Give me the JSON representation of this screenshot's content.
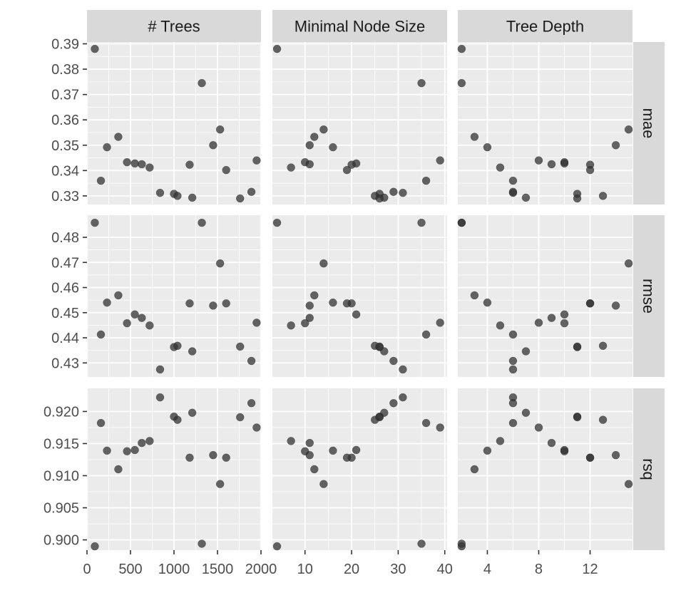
{
  "chart_data": {
    "type": "scatter",
    "facet_columns": [
      "# Trees",
      "Minimal Node Size",
      "Tree Depth"
    ],
    "facet_rows": [
      "mae",
      "rmse",
      "rsq"
    ],
    "point_color": "#333333",
    "point_opacity": 0.75,
    "panel_background": "#ebebeb",
    "strip_background": "#d9d9d9",
    "grid": true,
    "x_axes": [
      {
        "lim": [
          0,
          2000
        ],
        "ticks": [
          0,
          500,
          1000,
          1500,
          2000
        ],
        "tick_labels": [
          "0",
          "500",
          "1000",
          "1500",
          "2000"
        ]
      },
      {
        "lim": [
          3,
          40.5
        ],
        "ticks": [
          10,
          20,
          30,
          40
        ],
        "tick_labels": [
          "10",
          "20",
          "30",
          "40"
        ]
      },
      {
        "lim": [
          1.7,
          15.3
        ],
        "ticks": [
          4,
          8,
          12
        ],
        "tick_labels": [
          "4",
          "8",
          "12"
        ]
      }
    ],
    "y_axes": [
      {
        "lim": [
          0.3266,
          0.3907
        ],
        "ticks": [
          0.33,
          0.34,
          0.35,
          0.36,
          0.37,
          0.38,
          0.39
        ],
        "tick_labels": [
          "0.33",
          "0.34",
          "0.35",
          "0.36",
          "0.37",
          "0.38",
          "0.39"
        ]
      },
      {
        "lim": [
          0.4244,
          0.4888
        ],
        "ticks": [
          0.43,
          0.44,
          0.45,
          0.46,
          0.47,
          0.48
        ],
        "tick_labels": [
          "0.43",
          "0.44",
          "0.45",
          "0.46",
          "0.47",
          "0.48"
        ]
      },
      {
        "lim": [
          0.8984,
          0.9236
        ],
        "ticks": [
          0.9,
          0.905,
          0.91,
          0.915,
          0.92
        ],
        "tick_labels": [
          "0.900",
          "0.905",
          "0.910",
          "0.915",
          "0.920"
        ]
      }
    ],
    "models": [
      {
        "trees": 90,
        "min_n": 4,
        "depth": 2,
        "mae": 0.388,
        "rmse": 0.4858,
        "rsq": 0.899
      },
      {
        "trees": 160,
        "min_n": 36,
        "depth": 6,
        "mae": 0.336,
        "rmse": 0.4413,
        "rsq": 0.9182
      },
      {
        "trees": 230,
        "min_n": 16,
        "depth": 4,
        "mae": 0.3492,
        "rmse": 0.454,
        "rsq": 0.9139
      },
      {
        "trees": 360,
        "min_n": 12,
        "depth": 3,
        "mae": 0.3533,
        "rmse": 0.4569,
        "rsq": 0.911
      },
      {
        "trees": 460,
        "min_n": 10,
        "depth": 10,
        "mae": 0.3433,
        "rmse": 0.4458,
        "rsq": 0.9138
      },
      {
        "trees": 550,
        "min_n": 21,
        "depth": 10,
        "mae": 0.3428,
        "rmse": 0.4493,
        "rsq": 0.914
      },
      {
        "trees": 630,
        "min_n": 11,
        "depth": 9,
        "mae": 0.3425,
        "rmse": 0.4479,
        "rsq": 0.9151
      },
      {
        "trees": 720,
        "min_n": 7,
        "depth": 5,
        "mae": 0.3412,
        "rmse": 0.4449,
        "rsq": 0.9154
      },
      {
        "trees": 840,
        "min_n": 31,
        "depth": 6,
        "mae": 0.3312,
        "rmse": 0.4274,
        "rsq": 0.9222
      },
      {
        "trees": 1000,
        "min_n": 26,
        "depth": 11,
        "mae": 0.3308,
        "rmse": 0.4363,
        "rsq": 0.9192
      },
      {
        "trees": 1040,
        "min_n": 25,
        "depth": 13,
        "mae": 0.33,
        "rmse": 0.4368,
        "rsq": 0.9187
      },
      {
        "trees": 1180,
        "min_n": 20,
        "depth": 12,
        "mae": 0.3423,
        "rmse": 0.4537,
        "rsq": 0.9128
      },
      {
        "trees": 1210,
        "min_n": 27,
        "depth": 7,
        "mae": 0.3293,
        "rmse": 0.4346,
        "rsq": 0.9198
      },
      {
        "trees": 1320,
        "min_n": 35,
        "depth": 2,
        "mae": 0.3745,
        "rmse": 0.4858,
        "rsq": 0.8994
      },
      {
        "trees": 1450,
        "min_n": 11,
        "depth": 14,
        "mae": 0.35,
        "rmse": 0.4528,
        "rsq": 0.9132
      },
      {
        "trees": 1530,
        "min_n": 14,
        "depth": 15,
        "mae": 0.3562,
        "rmse": 0.4696,
        "rsq": 0.9087
      },
      {
        "trees": 1600,
        "min_n": 19,
        "depth": 12,
        "mae": 0.3402,
        "rmse": 0.4537,
        "rsq": 0.9128
      },
      {
        "trees": 1760,
        "min_n": 26,
        "depth": 11,
        "mae": 0.329,
        "rmse": 0.4365,
        "rsq": 0.9191
      },
      {
        "trees": 1890,
        "min_n": 29,
        "depth": 6,
        "mae": 0.3316,
        "rmse": 0.4308,
        "rsq": 0.9213
      },
      {
        "trees": 1950,
        "min_n": 39,
        "depth": 8,
        "mae": 0.344,
        "rmse": 0.446,
        "rsq": 0.9175
      }
    ]
  }
}
